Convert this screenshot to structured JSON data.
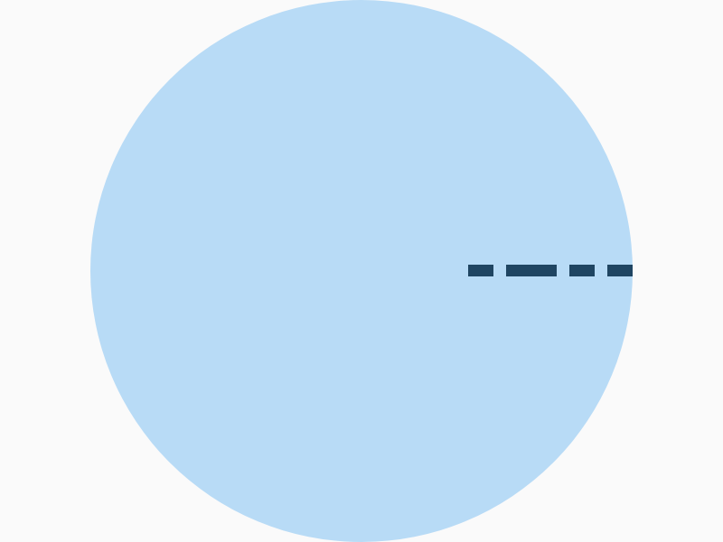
{
  "colors": {
    "background": "#fafafa",
    "disc_fill": "#b8dbf6",
    "dash_color": "#1f4562"
  },
  "shapes": {
    "disc": "filled-circle",
    "radius_marker": "dashed-radius-line"
  }
}
